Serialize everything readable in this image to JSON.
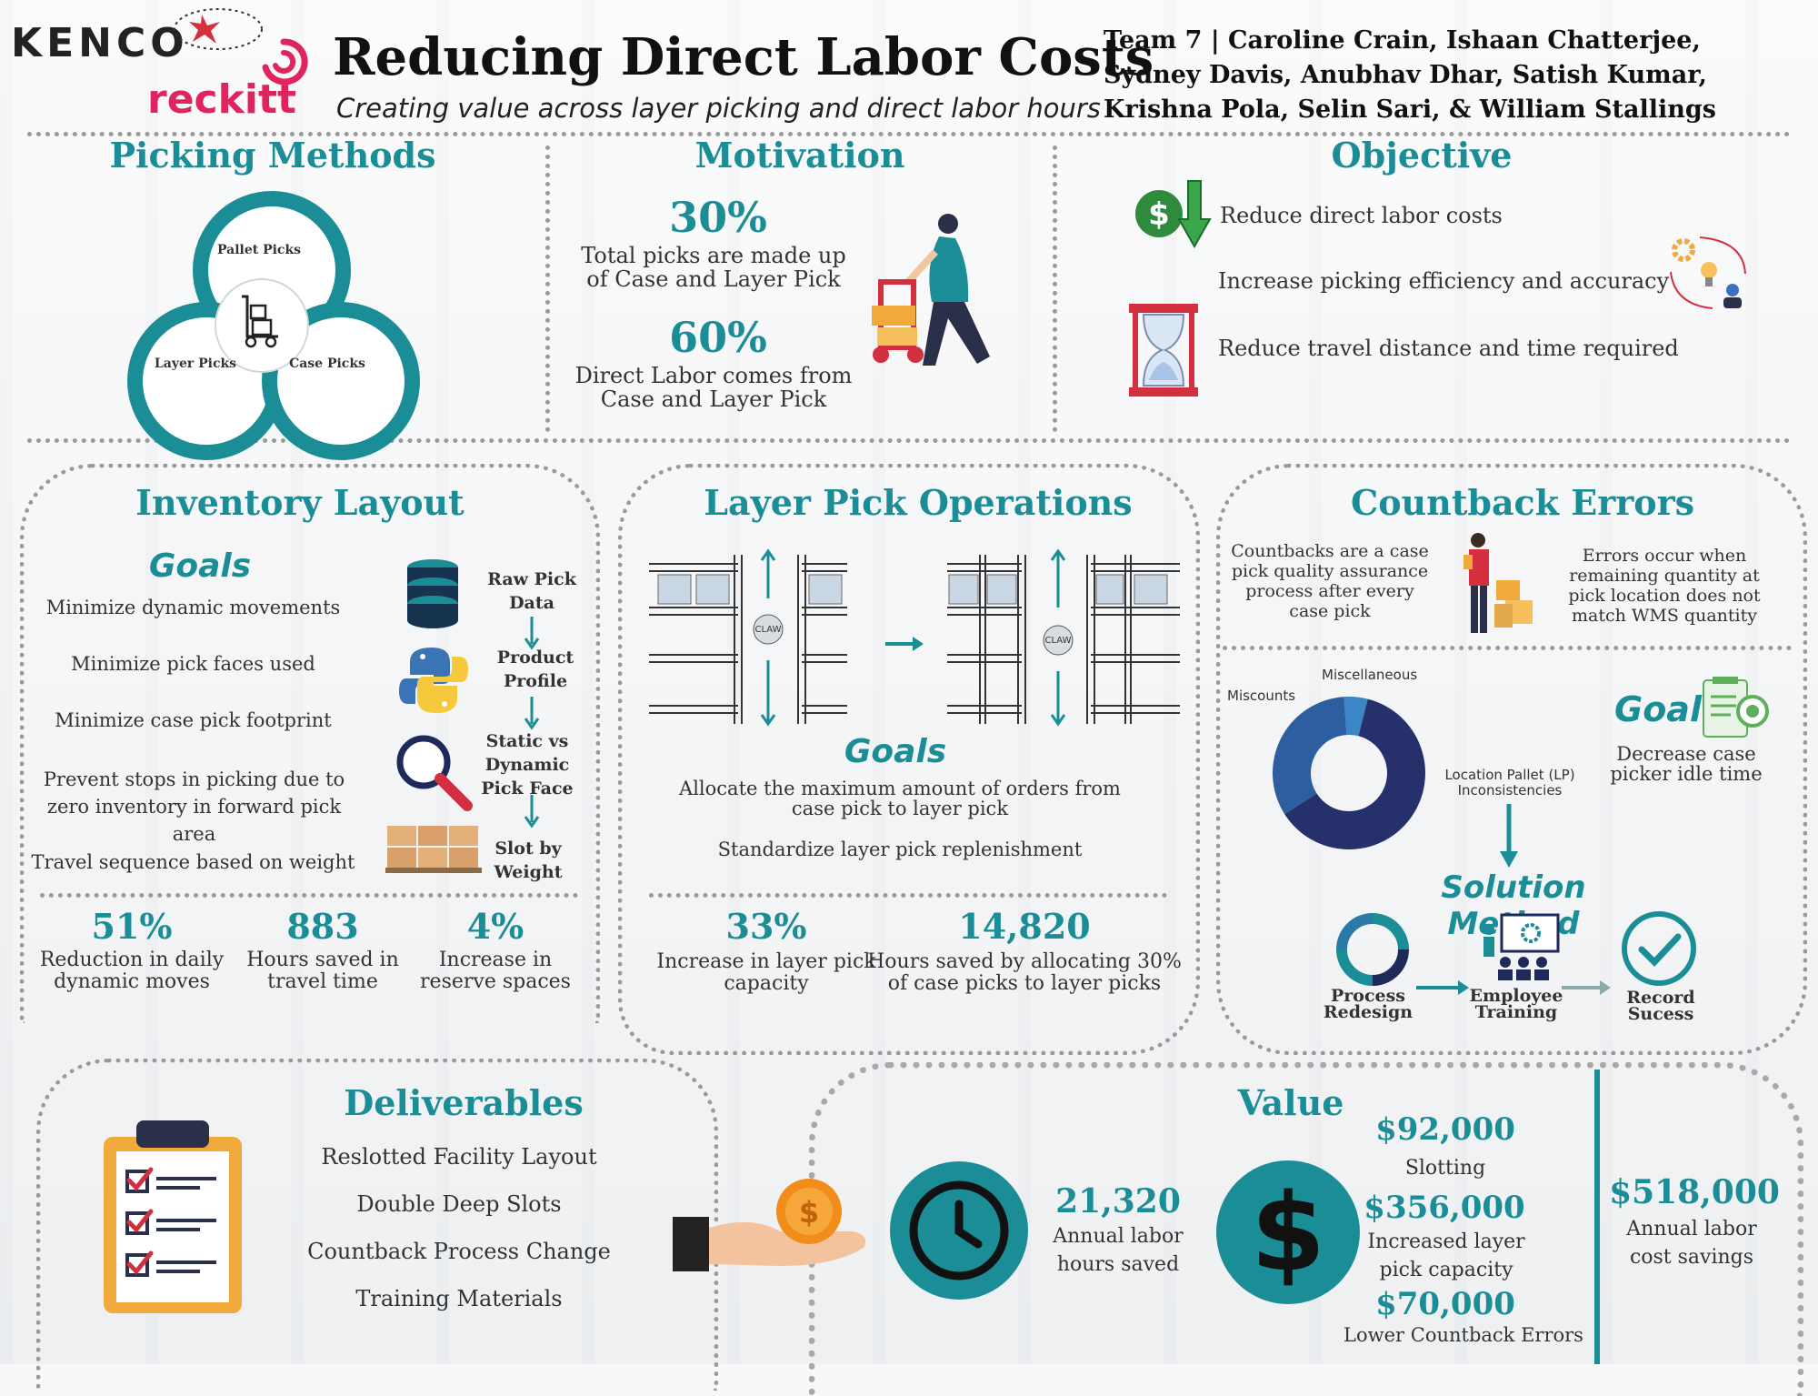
{
  "header": {
    "kenco_logo": "KENCO",
    "reckitt_logo": "reckitt",
    "title": "Reducing Direct Labor Costs",
    "subtitle": "Creating value across layer picking and direct labor hours",
    "team": "Team 7 | Caroline Crain, Ishaan Chatterjee, Sydney Davis, Anubhav Dhar, Satish Kumar, Krishna Pola, Selin Sari, & William Stallings"
  },
  "picking_methods": {
    "title": "Picking Methods",
    "pallet": "Pallet Picks",
    "layer": "Layer Picks",
    "case": "Case Picks"
  },
  "motivation": {
    "title": "Motivation",
    "stat1_value": "30%",
    "stat1_text": "Total picks are made up of Case and Layer Pick",
    "stat2_value": "60%",
    "stat2_text": "Direct Labor comes from Case and Layer Pick"
  },
  "objective": {
    "title": "Objective",
    "items": [
      "Reduce direct labor costs",
      "Increase picking efficiency and accuracy",
      "Reduce travel distance and time required"
    ]
  },
  "inventory_layout": {
    "title": "Inventory Layout",
    "goals_label": "Goals",
    "goals": [
      "Minimize dynamic movements",
      "Minimize pick faces used",
      "Minimize case pick footprint",
      "Prevent stops in picking due to zero inventory in forward pick area",
      "Travel sequence based on weight"
    ],
    "flow": [
      "Raw Pick Data",
      "Product Profile",
      "Static vs Dynamic Pick Face",
      "Slot by Weight"
    ],
    "stats": [
      {
        "value": "51%",
        "label": "Reduction in daily dynamic moves"
      },
      {
        "value": "883",
        "label": "Hours saved in travel time"
      },
      {
        "value": "4%",
        "label": "Increase in reserve spaces"
      }
    ]
  },
  "layer_pick": {
    "title": "Layer Pick Operations",
    "claw_label": "CLAW",
    "goals_label": "Goals",
    "goals": [
      "Allocate the maximum amount of orders from case pick to layer pick",
      "Standardize layer pick replenishment"
    ],
    "stats": [
      {
        "value": "33%",
        "label": "Increase in layer pick capacity"
      },
      {
        "value": "14,820",
        "label": "Hours saved by allocating 30% of case picks to layer picks"
      }
    ]
  },
  "countback": {
    "title": "Countback Errors",
    "left_text": "Countbacks are a case pick quality assurance process after every case pick",
    "right_text": "Errors occur when remaining quantity at pick location does not match WMS quantity",
    "goal_label": "Goal",
    "goal_text": "Decrease case picker idle time",
    "solution_label": "Solution Method",
    "steps": [
      "Process Redesign",
      "Employee Training",
      "Record Sucess"
    ]
  },
  "chart_data": {
    "type": "pie",
    "categories": [
      "Location Pallet (LP) Inconsistencies",
      "Miscounts",
      "Miscellaneous"
    ],
    "values": [
      62,
      33,
      5
    ],
    "colors": [
      "#26306a",
      "#2d5fa0",
      "#3b86c4"
    ],
    "donut": true
  },
  "deliverables": {
    "title": "Deliverables",
    "items": [
      "Reslotted Facility Layout",
      "Double Deep Slots",
      "Countback Process Change",
      "Training Materials"
    ]
  },
  "value": {
    "title": "Value",
    "hours_value": "21,320",
    "hours_label": "Annual labor hours saved",
    "items": [
      {
        "value": "$92,000",
        "label": "Slotting"
      },
      {
        "value": "$356,000",
        "label": "Increased layer pick capacity"
      },
      {
        "value": "$70,000",
        "label": "Lower Countback Errors"
      }
    ],
    "total_value": "$518,000",
    "total_label": "Annual labor cost savings"
  },
  "colors": {
    "teal": "#1b8d97",
    "navy": "#1e2a5a",
    "red": "#d32f3f",
    "pink": "#e0255e"
  }
}
